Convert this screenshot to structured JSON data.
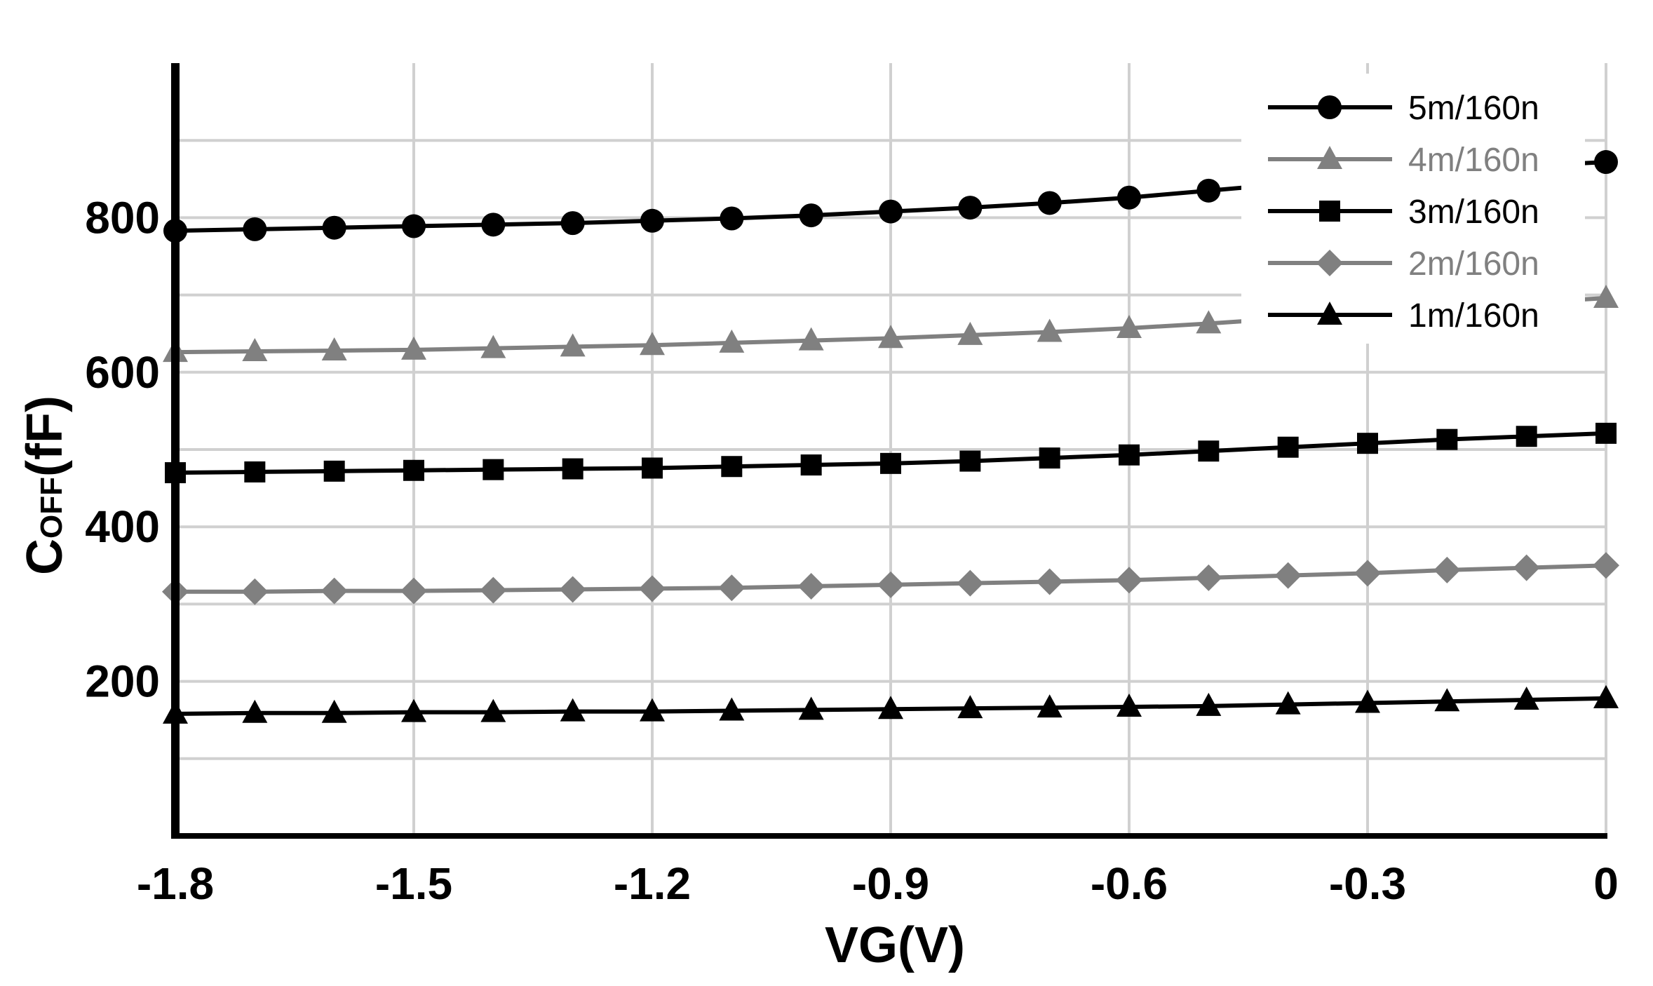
{
  "chart_data": {
    "type": "line",
    "xlabel": "VG(V)",
    "ylabel_main": "C",
    "ylabel_sub": "OFF",
    "ylabel_unit": "(fF)",
    "xlim": [
      -1.8,
      0
    ],
    "ylim": [
      0,
      1000
    ],
    "x_ticks": [
      -1.8,
      -1.5,
      -1.2,
      -0.9,
      -0.6,
      -0.3,
      0
    ],
    "x_tick_labels": [
      "-1.8",
      "-1.5",
      "-1.2",
      "-0.9",
      "-0.6",
      "-0.3",
      "0"
    ],
    "y_ticks": [
      200,
      400,
      600,
      800
    ],
    "y_tick_labels": [
      "200",
      "400",
      "600",
      "800"
    ],
    "grid": true,
    "legend_position": "top-right",
    "x": [
      -1.8,
      -1.7,
      -1.6,
      -1.5,
      -1.4,
      -1.3,
      -1.2,
      -1.1,
      -1.0,
      -0.9,
      -0.8,
      -0.7,
      -0.6,
      -0.5,
      -0.4,
      -0.3,
      -0.2,
      -0.1,
      0
    ],
    "series": [
      {
        "name": "5m/160n",
        "color": "#000000",
        "marker": "circle",
        "values": [
          783,
          785,
          787,
          789,
          791,
          793,
          796,
          799,
          803,
          808,
          813,
          819,
          826,
          835,
          844,
          853,
          861,
          867,
          872
        ]
      },
      {
        "name": "4m/160n",
        "color": "#808080",
        "marker": "triangle",
        "values": [
          626,
          627,
          628,
          629,
          631,
          633,
          635,
          638,
          641,
          644,
          648,
          652,
          657,
          663,
          670,
          677,
          684,
          690,
          696
        ]
      },
      {
        "name": "3m/160n",
        "color": "#000000",
        "marker": "square",
        "values": [
          470,
          471,
          472,
          473,
          474,
          475,
          476,
          478,
          480,
          482,
          485,
          489,
          493,
          498,
          503,
          508,
          513,
          517,
          521
        ]
      },
      {
        "name": "2m/160n",
        "color": "#808080",
        "marker": "diamond",
        "values": [
          316,
          316,
          317,
          317,
          318,
          319,
          320,
          321,
          323,
          325,
          327,
          329,
          331,
          334,
          337,
          340,
          344,
          347,
          350
        ]
      },
      {
        "name": "1m/160n",
        "color": "#000000",
        "marker": "triangle",
        "values": [
          158,
          159,
          159,
          160,
          160,
          161,
          161,
          162,
          163,
          164,
          165,
          166,
          167,
          168,
          170,
          172,
          174,
          176,
          178
        ]
      }
    ]
  }
}
